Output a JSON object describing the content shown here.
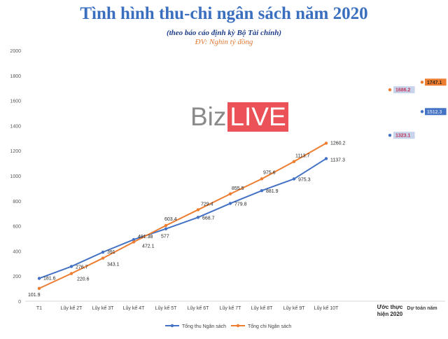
{
  "chart_data": {
    "type": "line",
    "title": "Tình hình thu-chi ngân sách năm 2020",
    "subtitle": "(theo báo cáo định kỳ Bộ Tài chính)",
    "unit_note": "ĐV: Nghìn tỷ đồng",
    "watermark": {
      "part1": "Biz",
      "part2": "LIVE"
    },
    "categories": [
      "T1",
      "Lũy kế 2T",
      "Lũy kế 3T",
      "Lũy kế 4T",
      "Lũy kế 5T",
      "Lũy kế 6T",
      "Lũy kế 7T",
      "Lũy kế 8T",
      "Lũy kế 9T",
      "Lũy kế 10T",
      "Ước thực hiện 2020",
      "Dự toán năm"
    ],
    "ylim": [
      0,
      2000
    ],
    "yticks": [
      0,
      200,
      400,
      600,
      800,
      1000,
      1200,
      1400,
      1600,
      1800,
      2000
    ],
    "grid": false,
    "legend_position": "bottom",
    "series": [
      {
        "name": "Tổng thu Ngân sách",
        "color": "#4472c4",
        "values": [
          181.6,
          276.7,
          391,
          491.38,
          577,
          668.7,
          779.8,
          881.9,
          975.3,
          1137.3,
          1323.1,
          1512.3
        ],
        "labels": [
          "181.6",
          "276.7",
          "391",
          "491.38",
          "577",
          "668.7",
          "779.8",
          "881.9",
          "975.3",
          "1137.3",
          "1323.1",
          "1512.3"
        ]
      },
      {
        "name": "Tổng chi Ngân sách",
        "color": "#ed7d31",
        "values": [
          101.9,
          220.6,
          343.1,
          472.1,
          603.4,
          729.4,
          855.5,
          975.6,
          1113.7,
          1260.2,
          1686.2,
          1747.1
        ],
        "labels": [
          "101.9",
          "220.6",
          "343.1",
          "472.1",
          "603.4",
          "729.4",
          "855.5",
          "975.6",
          "1113.7",
          "1260.2",
          "1686.2",
          "1747.1"
        ]
      }
    ],
    "highlight_colors": {
      "box_fill": "#c8d4ec",
      "box_fill_orange": "#ed7d31",
      "box_fill_blue": "#4472c4",
      "label_red": "#c0395a"
    }
  }
}
